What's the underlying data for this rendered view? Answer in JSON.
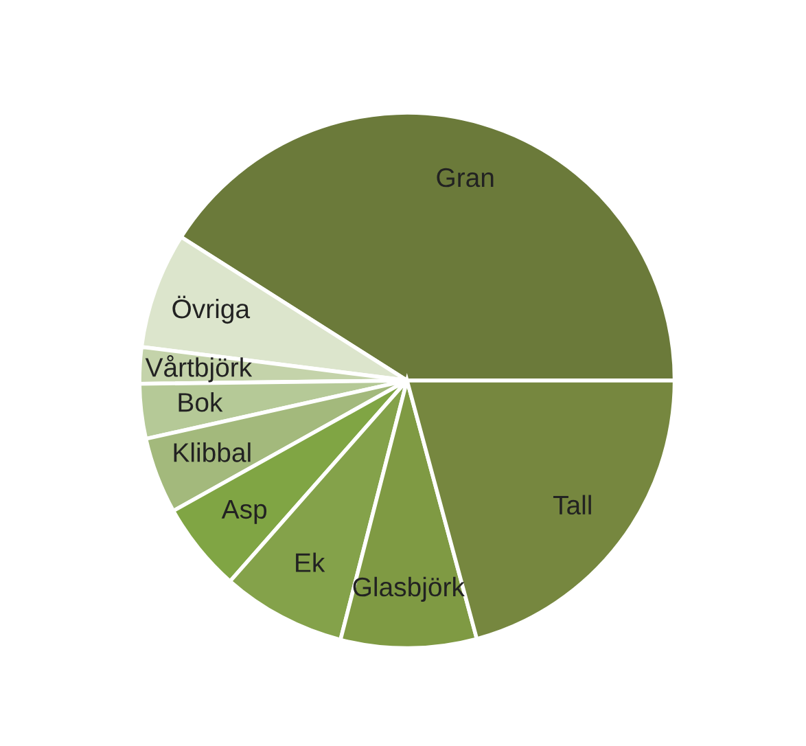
{
  "chart_data": {
    "type": "pie",
    "categories": [
      "Gran",
      "Övriga",
      "Vårtbjörk",
      "Bok",
      "Klibbal",
      "Asp",
      "Ek",
      "Glasbjörk",
      "Tall"
    ],
    "values": [
      41,
      7,
      2.2,
      3.3,
      4.6,
      5.4,
      7.5,
      8.2,
      20.8
    ],
    "colors": [
      "#6b7a3a",
      "#dce5cc",
      "#c4d3aa",
      "#b5c997",
      "#a3b97c",
      "#80a544",
      "#84a24a",
      "#7f9a43",
      "#76873f"
    ]
  }
}
